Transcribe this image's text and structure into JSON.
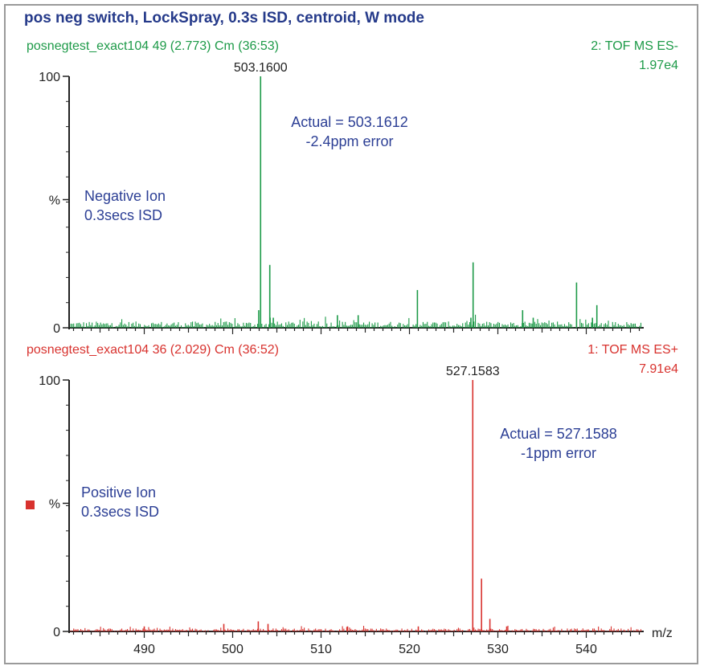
{
  "title": "pos neg switch, LockSpray, 0.3s ISD, centroid, W mode",
  "colors": {
    "negative": "#1d9a48",
    "positive": "#d8322e",
    "annotation": "#2c3f95",
    "axis": "#222222"
  },
  "chart_data": [
    {
      "type": "line",
      "panel": "top",
      "scan_label": "posnegtest_exact104 49 (2.773) Cm (36:53)",
      "function_label": "2: TOF MS ES-",
      "intensity_label": "1.97e4",
      "ylabel": "%",
      "y_ticks": [
        "100",
        "0"
      ],
      "ylim": [
        0,
        100
      ],
      "xlim": [
        481.5,
        546.5
      ],
      "peak_label": "503.1600",
      "annotation_lines": [
        "Actual = 503.1612",
        "-2.4ppm error"
      ],
      "ion_lines": [
        "Negative Ion",
        "0.3secs ISD"
      ],
      "baseline_noise": 2.5,
      "peaks": [
        {
          "x": 502.95,
          "y": 7
        },
        {
          "x": 503.16,
          "y": 100
        },
        {
          "x": 504.2,
          "y": 25
        },
        {
          "x": 504.6,
          "y": 4
        },
        {
          "x": 511.85,
          "y": 5
        },
        {
          "x": 514.2,
          "y": 5
        },
        {
          "x": 520.9,
          "y": 15
        },
        {
          "x": 526.95,
          "y": 4
        },
        {
          "x": 527.2,
          "y": 26
        },
        {
          "x": 532.8,
          "y": 7
        },
        {
          "x": 534.0,
          "y": 4
        },
        {
          "x": 538.9,
          "y": 18
        },
        {
          "x": 540.7,
          "y": 4
        },
        {
          "x": 541.2,
          "y": 9
        }
      ]
    },
    {
      "type": "line",
      "panel": "bottom",
      "scan_label": "posnegtest_exact104 36 (2.029) Cm (36:52)",
      "function_label": "1: TOF MS ES+",
      "intensity_label": "7.91e4",
      "ylabel": "%",
      "y_ticks": [
        "100",
        "0"
      ],
      "ylim": [
        0,
        100
      ],
      "xlim": [
        481.5,
        546.5
      ],
      "xlabel": "m/z",
      "x_ticks": [
        490,
        500,
        510,
        520,
        530,
        540
      ],
      "peak_label": "527.1583",
      "annotation_lines": [
        "Actual = 527.1588",
        "-1ppm error"
      ],
      "ion_lines": [
        "Positive Ion",
        "0.3secs ISD"
      ],
      "baseline_noise": 1.2,
      "peaks": [
        {
          "x": 490.0,
          "y": 2
        },
        {
          "x": 499.0,
          "y": 3
        },
        {
          "x": 502.9,
          "y": 4
        },
        {
          "x": 504.0,
          "y": 3
        },
        {
          "x": 513.0,
          "y": 2
        },
        {
          "x": 521.0,
          "y": 2
        },
        {
          "x": 527.16,
          "y": 100
        },
        {
          "x": 528.15,
          "y": 21
        },
        {
          "x": 529.1,
          "y": 5
        },
        {
          "x": 531.0,
          "y": 2
        }
      ]
    }
  ]
}
